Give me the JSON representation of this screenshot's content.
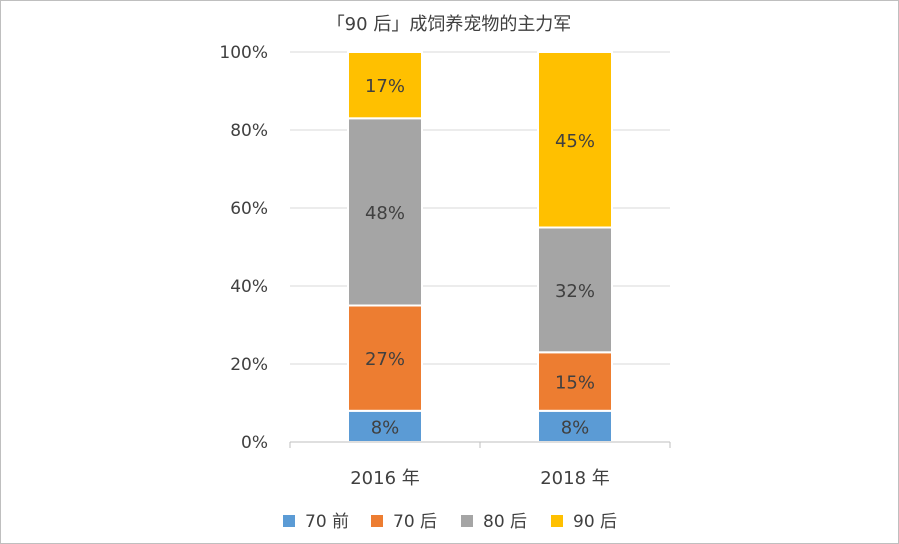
{
  "chart_data": {
    "type": "bar",
    "stacked": true,
    "title": "「90 后」成饲养宠物的主力军",
    "xlabel": "",
    "ylabel": "",
    "ylim": [
      0,
      100
    ],
    "y_ticks": [
      "0%",
      "20%",
      "40%",
      "60%",
      "80%",
      "100%"
    ],
    "categories": [
      "2016 年",
      "2018 年"
    ],
    "series": [
      {
        "name": "70 前",
        "values": [
          8,
          8
        ],
        "labels": [
          "8%",
          "8%"
        ]
      },
      {
        "name": "70 后",
        "values": [
          27,
          15
        ],
        "labels": [
          "27%",
          "15%"
        ]
      },
      {
        "name": "80 后",
        "values": [
          48,
          32
        ],
        "labels": [
          "48%",
          "32%"
        ]
      },
      {
        "name": "90 后",
        "values": [
          17,
          45
        ],
        "labels": [
          "17%",
          "45%"
        ]
      }
    ],
    "colors": [
      "#5b9bd5",
      "#ed7d31",
      "#a5a5a5",
      "#ffc000"
    ],
    "grid": true,
    "legend_position": "bottom"
  }
}
